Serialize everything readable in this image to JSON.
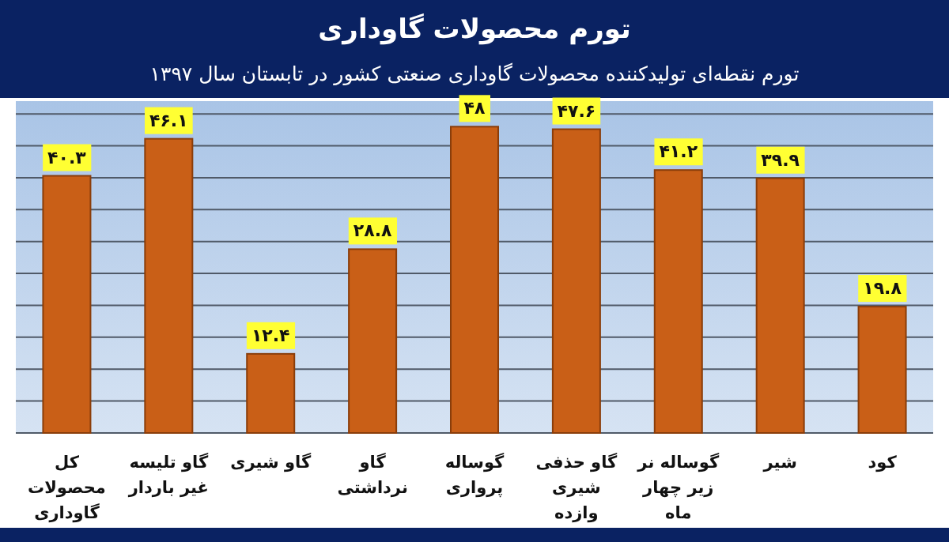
{
  "chart_data": {
    "type": "bar",
    "title": "تورم محصولات گاوداری",
    "subtitle": "تورم نقطه‌ای تولیدکننده محصولات  گاوداری صنعتی کشور در تابستان سال ۱۳۹۷",
    "categories": [
      "کل محصولات گاوداری",
      "گاو تلیسه غیر باردار",
      "گاو شیری",
      "گاو نرداشتی",
      "گوساله پرواری",
      "گاو حذفی شیری وازده",
      "گوساله نر زیر چهار ماه",
      "شیر",
      "کود"
    ],
    "values": [
      40.3,
      46.1,
      12.4,
      28.8,
      48,
      47.6,
      41.2,
      39.9,
      19.8
    ],
    "value_labels": [
      "۴۰.۳",
      "۴۶.۱",
      "۱۲.۴",
      "۲۸.۸",
      "۴۸",
      "۴۷.۶",
      "۴۱.۲",
      "۳۹.۹",
      "۱۹.۸"
    ],
    "color": "#c95f17",
    "ylim": [
      0,
      52
    ],
    "yticks": [
      {
        "value": 0,
        "label": null
      },
      {
        "value": 5,
        "label": null
      },
      {
        "value": 10,
        "label": null
      },
      {
        "value": 15,
        "label": null
      },
      {
        "value": 20,
        "label": null
      },
      {
        "value": 25,
        "label": null
      },
      {
        "value": 30,
        "label": null
      },
      {
        "value": 35,
        "label": null
      },
      {
        "value": 40,
        "label": null
      },
      {
        "value": 45,
        "label": null
      },
      {
        "value": 50,
        "label": null
      }
    ],
    "tick_labels": "x",
    "grid": "y"
  }
}
